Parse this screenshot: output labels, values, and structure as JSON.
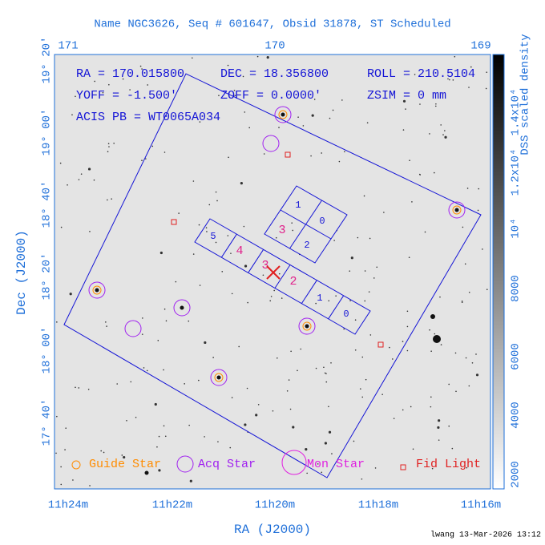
{
  "title": "Name NGC3626, Seq # 601647, Obsid 31878, ST Scheduled",
  "info": {
    "ra": "RA = 170.015800",
    "dec": "DEC = 18.356800",
    "roll": "ROLL = 210.5104",
    "yoff": "YOFF =  -1.500'",
    "zoff": "ZOFF =  0.0000'",
    "zsim": "ZSIM = 0 mm",
    "acis": "ACIS PB = WT0065A034"
  },
  "top_ticks": [
    "171",
    "170",
    "169"
  ],
  "bottom_ticks": [
    "11h24m",
    "11h22m",
    "11h20m",
    "11h18m",
    "11h16m"
  ],
  "left_ticks": [
    "19° 20'",
    "19° 00'",
    "18° 40'",
    "18° 20'",
    "18° 00'",
    "17° 40'"
  ],
  "x_label": "RA (J2000)",
  "y_label": "Dec (J2000)",
  "colorbar": {
    "label": "DSS scaled density",
    "ticks": [
      "2000",
      "4000",
      "6000",
      "8000",
      "10⁴",
      "1.2x10⁴",
      "1.4x10⁴"
    ]
  },
  "chips_top": [
    "1",
    "0",
    "3",
    "2"
  ],
  "chips_row": [
    "5",
    "4",
    "3",
    "2",
    "1",
    "0"
  ],
  "legend": [
    "Guide Star",
    "Acq Star",
    "Mon Star",
    "Fid Light"
  ],
  "footer": "lwang 13-Mar-2026 13:12"
}
